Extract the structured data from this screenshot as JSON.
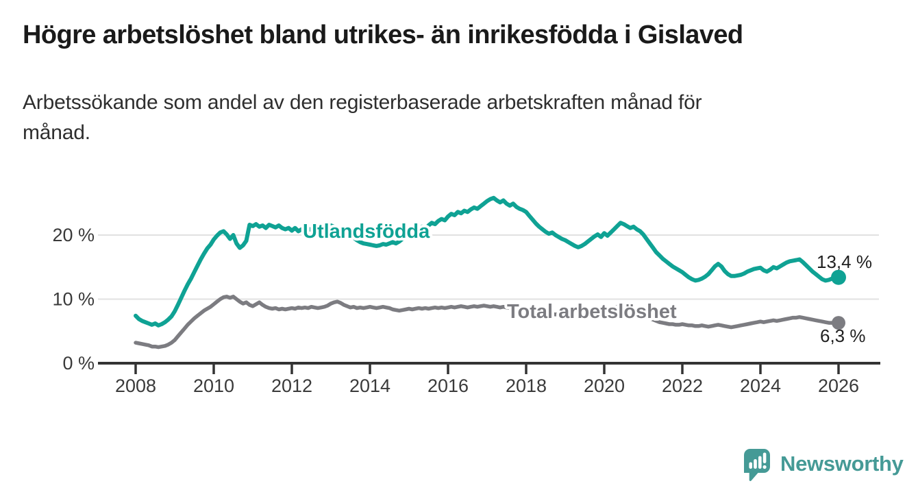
{
  "header": {
    "title": "Högre arbetslöshet bland utrikes- än inrikesfödda i Gislaved",
    "subtitle_line1": "Arbetssökande som andel av den registerbaserade arbetskraften månad för",
    "subtitle_line2": "månad."
  },
  "footer": {
    "brand": "Newsworthy",
    "brand_color": "#459a96"
  },
  "chart_data": {
    "type": "line",
    "title": "Högre arbetslöshet bland utrikes- än inrikesfödda i Gislaved",
    "subtitle": "Arbetssökande som andel av den registerbaserade arbetskraften månad för månad.",
    "x_start_year": 2008,
    "points_per_year": 12,
    "x_end": "2026-01",
    "ylim": [
      0,
      28
    ],
    "grid": "horizontal-only",
    "colors": {
      "grid": "#e1e1e1",
      "axis": "#333333"
    },
    "y_ticks": [
      {
        "value": 0,
        "label": "0 %"
      },
      {
        "value": 10,
        "label": "10 %"
      },
      {
        "value": 20,
        "label": "20 %"
      }
    ],
    "x_ticks": [
      {
        "value": 2008,
        "label": "2008"
      },
      {
        "value": 2010,
        "label": "2010"
      },
      {
        "value": 2012,
        "label": "2012"
      },
      {
        "value": 2014,
        "label": "2014"
      },
      {
        "value": 2016,
        "label": "2016"
      },
      {
        "value": 2018,
        "label": "2018"
      },
      {
        "value": 2020,
        "label": "2020"
      },
      {
        "value": 2022,
        "label": "2022"
      },
      {
        "value": 2024,
        "label": "2024"
      },
      {
        "value": 2026,
        "label": "2026"
      }
    ],
    "series": [
      {
        "name": "Utlandsfödda",
        "color": "#0fa294",
        "end_label": "13,4 %",
        "end_value": 13.4,
        "values": [
          7.4,
          6.9,
          6.6,
          6.4,
          6.2,
          6.0,
          6.2,
          5.9,
          6.1,
          6.4,
          6.8,
          7.3,
          8.1,
          9.1,
          10.2,
          11.3,
          12.3,
          13.2,
          14.2,
          15.2,
          16.2,
          17.1,
          17.9,
          18.5,
          19.3,
          19.9,
          20.4,
          20.6,
          20.1,
          19.4,
          20.0,
          18.7,
          18.0,
          18.4,
          19.1,
          21.6,
          21.4,
          21.7,
          21.3,
          21.5,
          21.1,
          21.6,
          21.4,
          21.2,
          21.5,
          21.1,
          20.9,
          21.1,
          20.7,
          21.1,
          20.6,
          20.9,
          20.7,
          21.0,
          20.8,
          21.1,
          20.9,
          21.2,
          21.4,
          21.3,
          21.5,
          21.3,
          21.1,
          20.9,
          20.6,
          20.3,
          20.0,
          19.6,
          19.2,
          18.9,
          18.7,
          18.6,
          18.5,
          18.4,
          18.3,
          18.4,
          18.6,
          18.5,
          18.7,
          18.9,
          18.7,
          19.0,
          19.4,
          19.9,
          20.3,
          20.7,
          20.4,
          20.9,
          21.3,
          21.0,
          21.5,
          21.9,
          21.7,
          22.2,
          22.5,
          22.3,
          22.9,
          23.3,
          23.1,
          23.6,
          23.4,
          23.8,
          23.6,
          24.0,
          24.3,
          24.1,
          24.5,
          24.9,
          25.3,
          25.6,
          25.8,
          25.4,
          25.1,
          25.4,
          24.9,
          24.6,
          24.9,
          24.4,
          24.1,
          23.9,
          23.6,
          23.0,
          22.4,
          21.8,
          21.3,
          20.9,
          20.5,
          20.2,
          20.4,
          20.0,
          19.7,
          19.4,
          19.2,
          18.9,
          18.6,
          18.3,
          18.1,
          18.3,
          18.6,
          19.0,
          19.4,
          19.8,
          20.1,
          19.7,
          20.3,
          19.9,
          20.4,
          20.9,
          21.4,
          21.9,
          21.7,
          21.4,
          21.1,
          21.3,
          20.9,
          20.6,
          20.1,
          19.4,
          18.7,
          18.0,
          17.3,
          16.8,
          16.3,
          15.9,
          15.5,
          15.1,
          14.8,
          14.5,
          14.2,
          13.8,
          13.4,
          13.1,
          12.9,
          13.0,
          13.2,
          13.5,
          13.9,
          14.5,
          15.1,
          15.5,
          15.1,
          14.4,
          13.9,
          13.6,
          13.6,
          13.7,
          13.8,
          14.0,
          14.3,
          14.5,
          14.7,
          14.8,
          14.9,
          14.5,
          14.3,
          14.6,
          15.0,
          14.8,
          15.1,
          15.4,
          15.7,
          15.9,
          16.0,
          16.1,
          16.2,
          15.8,
          15.3,
          14.8,
          14.3,
          13.9,
          13.5,
          13.1,
          12.9,
          13.0,
          13.2,
          13.3,
          13.4
        ]
      },
      {
        "name": "Total arbetslöshet",
        "color": "#7c7c81",
        "end_label": "6,3 %",
        "end_value": 6.3,
        "values": [
          3.2,
          3.1,
          3.0,
          2.9,
          2.8,
          2.6,
          2.6,
          2.5,
          2.6,
          2.7,
          2.9,
          3.2,
          3.6,
          4.2,
          4.8,
          5.4,
          6.0,
          6.5,
          7.0,
          7.4,
          7.8,
          8.2,
          8.5,
          8.8,
          9.2,
          9.6,
          10.0,
          10.3,
          10.4,
          10.2,
          10.4,
          10.0,
          9.6,
          9.3,
          9.5,
          9.1,
          8.9,
          9.2,
          9.5,
          9.1,
          8.8,
          8.6,
          8.5,
          8.6,
          8.4,
          8.5,
          8.4,
          8.5,
          8.6,
          8.5,
          8.7,
          8.6,
          8.7,
          8.6,
          8.8,
          8.7,
          8.6,
          8.7,
          8.8,
          9.0,
          9.3,
          9.5,
          9.6,
          9.4,
          9.1,
          8.9,
          8.7,
          8.8,
          8.6,
          8.7,
          8.6,
          8.7,
          8.8,
          8.7,
          8.6,
          8.7,
          8.8,
          8.7,
          8.6,
          8.4,
          8.3,
          8.2,
          8.3,
          8.4,
          8.5,
          8.4,
          8.5,
          8.6,
          8.5,
          8.6,
          8.5,
          8.6,
          8.7,
          8.6,
          8.7,
          8.6,
          8.7,
          8.8,
          8.7,
          8.8,
          8.9,
          8.8,
          8.7,
          8.8,
          8.9,
          8.8,
          8.9,
          9.0,
          8.9,
          8.8,
          8.9,
          8.8,
          8.7,
          8.8,
          8.7,
          8.6,
          8.5,
          8.4,
          8.3,
          8.2,
          8.1,
          8.0,
          7.9,
          7.8,
          7.9,
          7.8,
          7.7,
          7.8,
          7.7,
          7.6,
          7.7,
          7.6,
          7.5,
          7.4,
          7.3,
          7.2,
          7.3,
          7.2,
          7.3,
          7.4,
          7.5,
          7.6,
          7.7,
          7.8,
          8.0,
          8.2,
          8.5,
          8.7,
          8.8,
          8.9,
          8.8,
          8.7,
          8.5,
          8.3,
          8.1,
          7.9,
          7.6,
          7.3,
          7.0,
          6.8,
          6.6,
          6.4,
          6.3,
          6.2,
          6.1,
          6.1,
          6.0,
          6.0,
          6.1,
          6.0,
          5.9,
          5.9,
          5.8,
          5.8,
          5.9,
          5.8,
          5.7,
          5.8,
          5.9,
          6.0,
          5.9,
          5.8,
          5.7,
          5.6,
          5.7,
          5.8,
          5.9,
          6.0,
          6.1,
          6.2,
          6.3,
          6.4,
          6.5,
          6.4,
          6.5,
          6.6,
          6.7,
          6.6,
          6.7,
          6.8,
          6.9,
          7.0,
          7.1,
          7.1,
          7.2,
          7.1,
          7.0,
          6.9,
          6.8,
          6.7,
          6.6,
          6.5,
          6.4,
          6.3,
          6.3,
          6.3,
          6.3
        ]
      }
    ],
    "legend_position": "inline-labels-on-lines"
  }
}
